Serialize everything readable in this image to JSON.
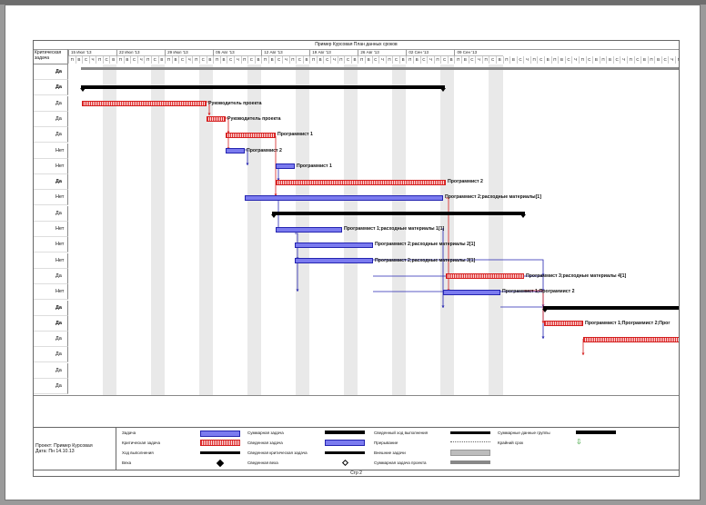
{
  "title": "Пример Курсовая  План данных сроков",
  "critical_header": "Критическая задача",
  "weeks": [
    "15 Июл '13",
    "22 Июл '13",
    "29 Июл '13",
    "05 Авг '13",
    "12 Авг '13",
    "19 Авг '13",
    "26 Авг '13",
    "02 Сен '13",
    "09 Сен '13"
  ],
  "day_letters": [
    "П",
    "В",
    "С",
    "Ч",
    "П",
    "С",
    "В"
  ],
  "critical_column": [
    "Да",
    "Да",
    "Да",
    "Да",
    "Да",
    "Нет",
    "Нет",
    "Да",
    "Нет",
    "Да",
    "Нет",
    "Нет",
    "Нет",
    "Да",
    "Нет",
    "Да",
    "Да",
    "Да",
    "Да",
    "Да",
    "Да"
  ],
  "labels": {
    "l1": "Руководитель проекта",
    "l2": "Руководитель проекта",
    "l3": "Программист 1",
    "l4": "Программист 2",
    "l5": "Программист 1",
    "l6": "Программист 2",
    "l7": "Программист 2;расходные материалы[1]",
    "l8": "Программист 1;расходные материалы 1[1]",
    "l9": "Программист 2;расходные материалы 2[1]",
    "l10": "Программист 2;расходные материалы 3[1]",
    "l11": "Программист 3;расходные материалы 4[1]",
    "l12": "Программист 1;Программист 2",
    "l13": "Программист 1;Программист 2;Прог"
  },
  "legend": {
    "project": "Проект: Пример Курсовая",
    "date": "Дата: Пн 14.10.13",
    "items": [
      "Задача",
      "Критическая задача",
      "Ход выполнения",
      "Веха",
      "Суммарная задача",
      "Сведенная задача",
      "Сведенная критическая задача",
      "Сведенная веха",
      "Сведенный ход выполнения",
      "Прерывание",
      "Внешние задачи",
      "Суммарная задача проекта",
      "Суммарные данные группы",
      "Крайний срок"
    ]
  },
  "page_label": "Стр 2",
  "colors": {
    "task": "#7b7bef",
    "critical": "#e03030",
    "summary": "#000000",
    "link_blue": "#2424b0",
    "link_red": "#d42020"
  }
}
